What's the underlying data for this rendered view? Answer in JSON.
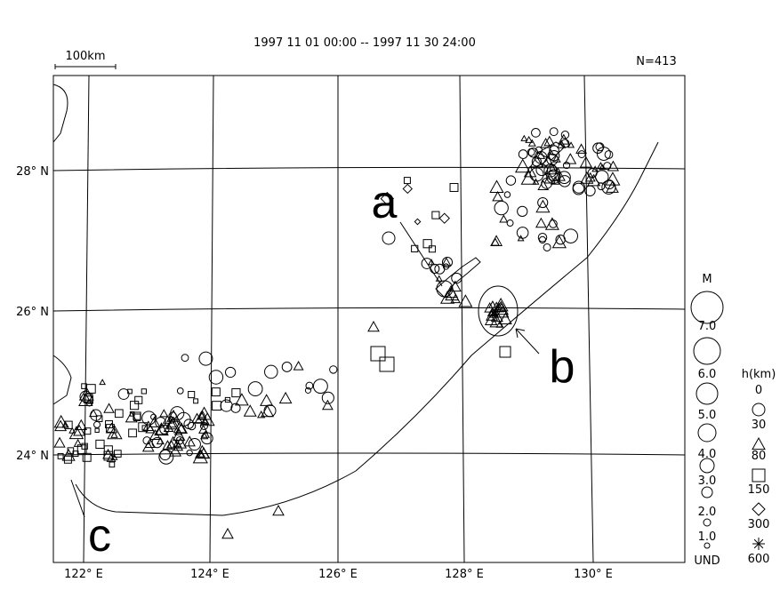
{
  "title": "1997 11 01 00:00 -- 1997 11 30 24:00",
  "scale_bar": "100km",
  "count": "N=413",
  "lat_labels": [
    "28° N",
    "26° N",
    "24° N"
  ],
  "lon_labels": [
    "122° E",
    "124° E",
    "126° E",
    "128° E",
    "130° E"
  ],
  "annotations": [
    "a",
    "b",
    "c"
  ],
  "magnitude_legend": {
    "title": "M",
    "labels": [
      "7.0",
      "6.0",
      "5.0",
      "4.0",
      "3.0",
      "2.0",
      "1.0",
      "UND"
    ]
  },
  "depth_legend": {
    "title": "h(km)",
    "labels": [
      "0",
      "30",
      "80",
      "150",
      "300",
      "600"
    ]
  }
}
